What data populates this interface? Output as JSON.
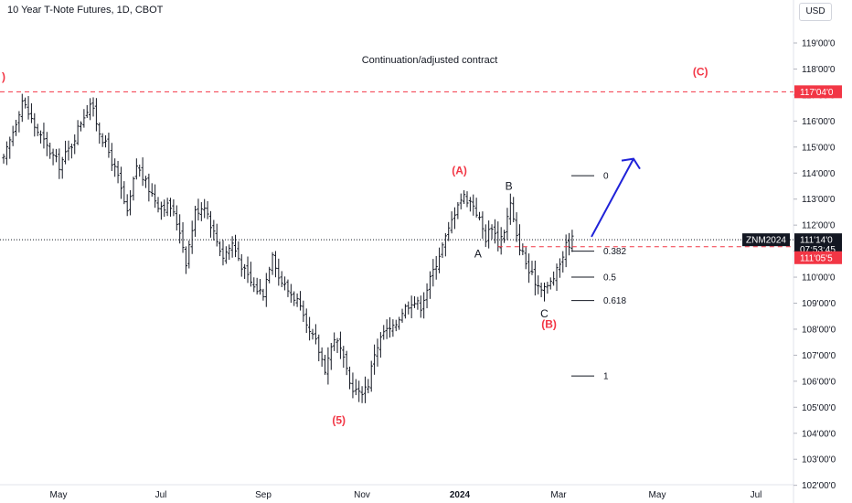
{
  "header": {
    "symbol_title": "10 Year T-Note Futures, 1D, CBOT",
    "currency": "USD"
  },
  "annotation_note": "Continuation/adjusted contract",
  "chart_data": {
    "type": "ohlc-bar",
    "y_axis": {
      "ticks": [
        "119'00'0",
        "118'00'0",
        "117'00'0",
        "116'00'0",
        "115'00'0",
        "114'00'0",
        "113'00'0",
        "112'00'0",
        "111'00'0",
        "110'00'0",
        "109'00'0",
        "108'00'0",
        "107'00'0",
        "106'00'0",
        "105'00'0",
        "104'00'0",
        "103'00'0",
        "102'00'0"
      ],
      "tick_values": [
        119,
        118,
        117,
        116,
        115,
        114,
        113,
        112,
        111,
        110,
        109,
        108,
        107,
        106,
        105,
        104,
        103,
        102
      ]
    },
    "x_axis": {
      "ticks": [
        "May",
        "Jul",
        "Sep",
        "Nov",
        "2024",
        "Mar",
        "May",
        "Jul"
      ]
    },
    "price_labels": {
      "resistance": {
        "text": "117'04'0",
        "value": 117.125,
        "color": "#f23645"
      },
      "current_symbol": {
        "text": "ZNM2024",
        "color": "#131722"
      },
      "current_price": {
        "text": "111'14'0",
        "value": 111.4375,
        "color": "#131722"
      },
      "countdown": {
        "text": "07:53:45"
      },
      "support": {
        "text": "111'05'5",
        "value": 111.17,
        "color": "#f23645"
      }
    },
    "wave_labels": [
      {
        "text": "(A)",
        "color": "#f23645"
      },
      {
        "text": "B",
        "color": "#131722"
      },
      {
        "text": "A",
        "color": "#131722"
      },
      {
        "text": "C",
        "color": "#131722"
      },
      {
        "text": "(B)",
        "color": "#f23645"
      },
      {
        "text": "(5)",
        "color": "#f23645"
      },
      {
        "text": "(C)",
        "color": "#f23645"
      },
      {
        "text": ")",
        "color": "#f23645"
      }
    ],
    "fibonacci": [
      {
        "level": "0",
        "value": 113.9
      },
      {
        "level": "0.382",
        "value": 111.0
      },
      {
        "level": "0.5",
        "value": 110.0
      },
      {
        "level": "0.618",
        "value": 109.1
      },
      {
        "level": "1",
        "value": 106.2
      }
    ],
    "waypoints": [
      [
        0,
        114.5
      ],
      [
        3,
        115.6
      ],
      [
        6,
        116.8
      ],
      [
        10,
        115.8
      ],
      [
        14,
        115.0
      ],
      [
        18,
        114.3
      ],
      [
        22,
        115.1
      ],
      [
        25,
        116.0
      ],
      [
        28,
        116.7
      ],
      [
        31,
        115.6
      ],
      [
        34,
        114.8
      ],
      [
        37,
        113.8
      ],
      [
        40,
        112.4
      ],
      [
        43,
        114.3
      ],
      [
        46,
        113.6
      ],
      [
        50,
        112.8
      ],
      [
        54,
        112.7
      ],
      [
        57,
        111.8
      ],
      [
        59,
        110.6
      ],
      [
        62,
        112.5
      ],
      [
        65,
        112.8
      ],
      [
        68,
        111.7
      ],
      [
        71,
        110.8
      ],
      [
        74,
        111.3
      ],
      [
        78,
        110.2
      ],
      [
        81,
        109.6
      ],
      [
        84,
        109.4
      ],
      [
        87,
        111.0
      ],
      [
        89,
        110.0
      ],
      [
        92,
        109.5
      ],
      [
        95,
        109.1
      ],
      [
        98,
        108.0
      ],
      [
        101,
        107.5
      ],
      [
        104,
        106.5
      ],
      [
        107,
        107.7
      ],
      [
        109,
        107.2
      ],
      [
        112,
        105.9
      ],
      [
        115,
        105.5
      ],
      [
        118,
        105.9
      ],
      [
        120,
        107.1
      ],
      [
        123,
        107.9
      ],
      [
        126,
        108.0
      ],
      [
        129,
        108.7
      ],
      [
        132,
        109.1
      ],
      [
        135,
        108.9
      ],
      [
        138,
        109.9
      ],
      [
        141,
        110.9
      ],
      [
        144,
        111.8
      ],
      [
        147,
        112.9
      ],
      [
        149,
        113.1
      ],
      [
        152,
        112.8
      ],
      [
        154,
        112.2
      ],
      [
        156,
        111.5
      ],
      [
        158,
        112.0
      ],
      [
        160,
        111.3
      ],
      [
        162,
        111.8
      ],
      [
        164,
        112.8
      ],
      [
        166,
        111.5
      ],
      [
        168,
        110.9
      ],
      [
        170,
        110.2
      ],
      [
        173,
        109.7
      ],
      [
        176,
        109.6
      ],
      [
        179,
        110.2
      ],
      [
        182,
        111.2
      ],
      [
        184,
        111.45
      ]
    ],
    "series_color": "#131722",
    "projection_color": "#1f22d8"
  }
}
